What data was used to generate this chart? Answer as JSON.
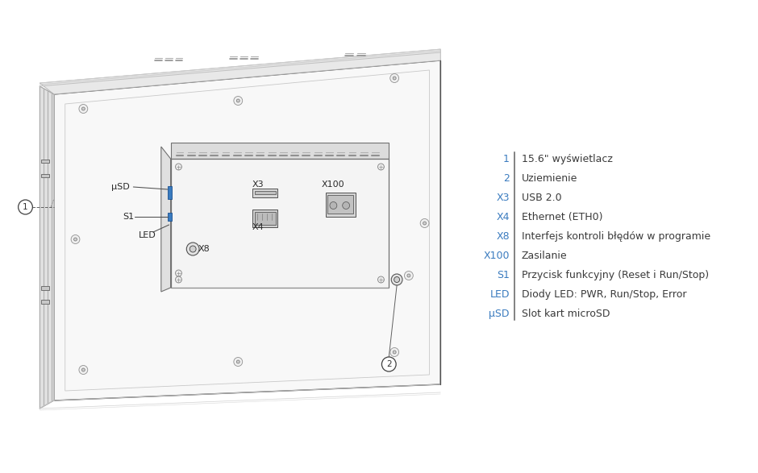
{
  "background_color": "#ffffff",
  "legend_items": [
    {
      "key": "1",
      "value": "15.6\" wyświetlacz"
    },
    {
      "key": "2",
      "value": "Uziemienie"
    },
    {
      "key": "X3",
      "value": "USB 2.0"
    },
    {
      "key": "X4",
      "value": "Ethernet (ETH0)"
    },
    {
      "key": "X8",
      "value": "Interfejs kontroli błędów w programie"
    },
    {
      "key": "X100",
      "value": "Zasilanie"
    },
    {
      "key": "S1",
      "value": "Przycisk funkcyjny (Reset i Run/Stop)"
    },
    {
      "key": "LED",
      "value": "Diody LED: PWR, Run/Stop, Error"
    },
    {
      "key": "μSD",
      "value": "Slot kart microSD"
    }
  ],
  "key_color": "#3a7bbf",
  "value_color": "#3a3a3a",
  "divider_color": "#606060",
  "line_color": "#888888",
  "dark_line": "#505050",
  "blue_accent": "#3a7bbf",
  "label_color": "#2a2a2a",
  "font_size_legend": 9.0,
  "font_size_label": 8.0,
  "panel_face_color": "#f8f8f8",
  "panel_top_color": "#e8e8e8",
  "panel_side_color": "#e0e0e0",
  "module_face_color": "#f4f4f4",
  "module_top_color": "#dcdcdc"
}
